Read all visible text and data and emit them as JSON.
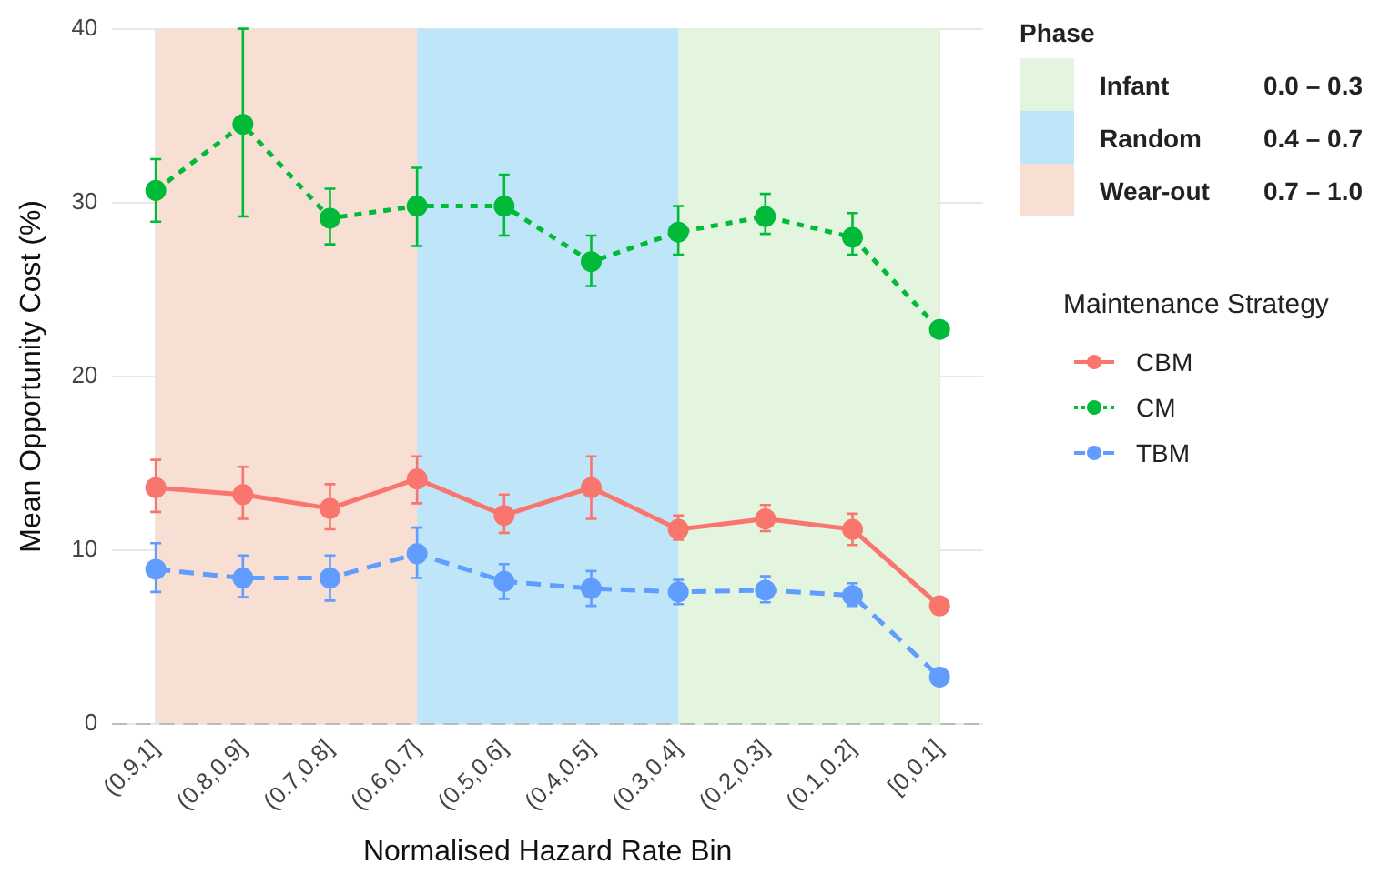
{
  "chart_data": {
    "type": "line",
    "xlabel": "Normalised Hazard Rate Bin",
    "ylabel": "Mean Opportunity Cost (%)",
    "categories": [
      "(0.9,1]",
      "(0.8,0.9]",
      "(0.7,0.8]",
      "(0.6,0.7]",
      "(0.5,0.6]",
      "(0.4,0.5]",
      "(0.3,0.4]",
      "(0.2,0.3]",
      "(0.1,0.2]",
      "[0,0.1]"
    ],
    "ylim": [
      0,
      40
    ],
    "yticks": [
      0,
      10,
      20,
      30,
      40
    ],
    "grid": true,
    "legend": "right",
    "legend_title": "Maintenance Strategy",
    "marker": "circle",
    "series": [
      {
        "name": "CBM",
        "color": "#f8766d",
        "line_style": "solid",
        "values": [
          13.6,
          13.2,
          12.4,
          14.1,
          12.0,
          13.6,
          11.2,
          11.8,
          11.2,
          6.8
        ],
        "errors": [
          [
            12.2,
            15.2
          ],
          [
            11.8,
            14.8
          ],
          [
            11.2,
            13.8
          ],
          [
            12.7,
            15.4
          ],
          [
            11.0,
            13.2
          ],
          [
            11.8,
            15.4
          ],
          [
            10.6,
            12.0
          ],
          [
            11.1,
            12.6
          ],
          [
            10.3,
            12.1
          ],
          null
        ]
      },
      {
        "name": "CM",
        "color": "#00ba38",
        "line_style": "dotted",
        "values": [
          30.7,
          34.5,
          29.1,
          29.8,
          29.8,
          26.6,
          28.3,
          29.2,
          28.0,
          22.7
        ],
        "errors": [
          [
            28.9,
            32.5
          ],
          [
            29.2,
            40
          ],
          [
            27.6,
            30.8
          ],
          [
            27.5,
            32.0
          ],
          [
            28.1,
            31.6
          ],
          [
            25.2,
            28.1
          ],
          [
            27.0,
            29.8
          ],
          [
            28.2,
            30.5
          ],
          [
            27.0,
            29.4
          ],
          null
        ]
      },
      {
        "name": "TBM",
        "color": "#619cff",
        "line_style": "dashed",
        "values": [
          8.9,
          8.4,
          8.4,
          9.8,
          8.2,
          7.8,
          7.6,
          7.7,
          7.4,
          2.7
        ],
        "errors": [
          [
            7.6,
            10.4
          ],
          [
            7.3,
            9.7
          ],
          [
            7.1,
            9.7
          ],
          [
            8.4,
            11.3
          ],
          [
            7.2,
            9.2
          ],
          [
            6.8,
            8.8
          ],
          [
            6.9,
            8.3
          ],
          [
            7.0,
            8.5
          ],
          [
            6.8,
            8.1
          ],
          null
        ]
      }
    ],
    "bands": [
      {
        "axis": "x",
        "from": "(0.3,0.4]",
        "to": "[0,0.1]",
        "color": "#e3f4df"
      },
      {
        "axis": "x",
        "from": "(0.6,0.7]",
        "to": "(0.3,0.4]",
        "color": "#bfe6f8"
      },
      {
        "axis": "x",
        "from": "(0.9,1]",
        "to": "(0.6,0.7]",
        "color": "#f8dfd3"
      }
    ],
    "ref_lines": [
      {
        "axis": "y",
        "value": 0,
        "color": "#bbbbbb",
        "line_style": "dashed"
      }
    ],
    "annotations": [
      "Phase",
      "Infant",
      "0.0 – 0.3",
      "Random",
      "0.4 – 0.7",
      "Wear-out",
      "0.7 – 1.0"
    ]
  }
}
